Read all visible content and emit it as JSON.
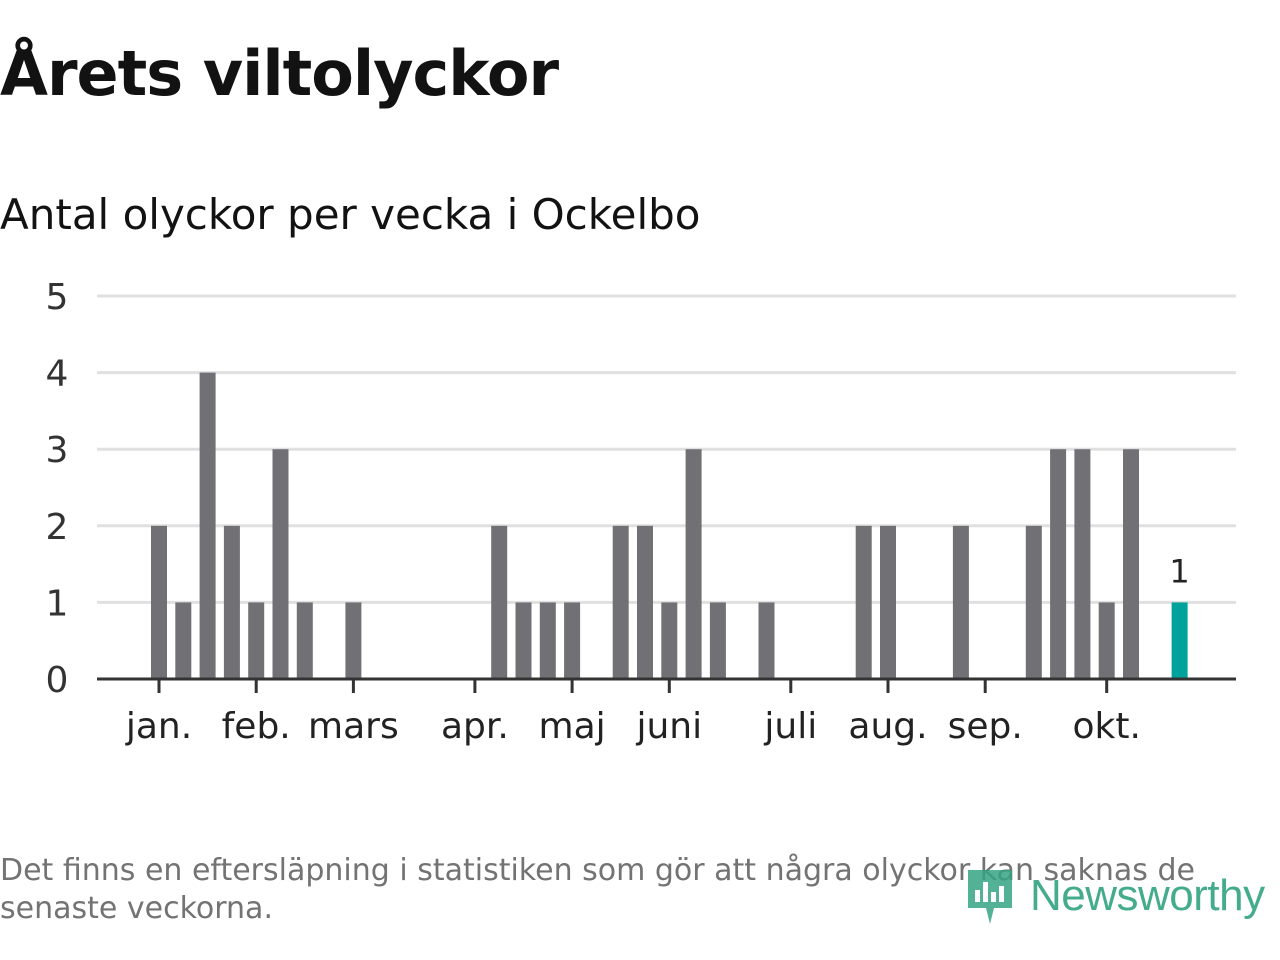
{
  "title": "Årets viltolyckor",
  "subtitle": "Antal olyckor per vecka i Ockelbo",
  "footnote": "Det finns en eftersläpning i statistiken som gör att några olyckor kan saknas de senaste veckorna.",
  "brand": {
    "name": "Newsworthy",
    "icon": "newsworthy-logo-icon",
    "color": "#35a584"
  },
  "colors": {
    "bar": "#717075",
    "highlight": "#00a29b",
    "grid": "#e0e0e0",
    "axis": "#333333"
  },
  "chart_data": {
    "type": "bar",
    "title": "Antal olyckor per vecka i Ockelbo",
    "xlabel": "",
    "ylabel": "",
    "ylim": [
      0,
      5
    ],
    "yticks": [
      "0",
      "1",
      "2",
      "3",
      "4",
      "5"
    ],
    "weeks": [
      1,
      2,
      3,
      4,
      5,
      6,
      7,
      8,
      9,
      10,
      11,
      12,
      13,
      14,
      15,
      16,
      17,
      18,
      19,
      20,
      21,
      22,
      23,
      24,
      25,
      26,
      27,
      28,
      29,
      30,
      31,
      32,
      33,
      34,
      35,
      36,
      37,
      38,
      39,
      40,
      41,
      42,
      43
    ],
    "values": [
      2,
      1,
      4,
      2,
      1,
      3,
      1,
      0,
      1,
      0,
      0,
      0,
      0,
      0,
      2,
      1,
      1,
      1,
      0,
      2,
      2,
      1,
      3,
      1,
      0,
      1,
      0,
      0,
      0,
      2,
      2,
      0,
      0,
      2,
      0,
      0,
      2,
      3,
      3,
      1,
      3,
      0,
      1
    ],
    "highlight": {
      "week": 43,
      "label": "1"
    },
    "month_labels": [
      {
        "label": "jan.",
        "week": 1.5
      },
      {
        "label": "feb.",
        "week": 5.5
      },
      {
        "label": "mars",
        "week": 9.5
      },
      {
        "label": "apr.",
        "week": 14.5
      },
      {
        "label": "maj",
        "week": 18.5
      },
      {
        "label": "juni",
        "week": 22.5
      },
      {
        "label": "juli",
        "week": 27.5
      },
      {
        "label": "aug.",
        "week": 31.5
      },
      {
        "label": "sep.",
        "week": 35.5
      },
      {
        "label": "okt.",
        "week": 40.5
      }
    ]
  }
}
